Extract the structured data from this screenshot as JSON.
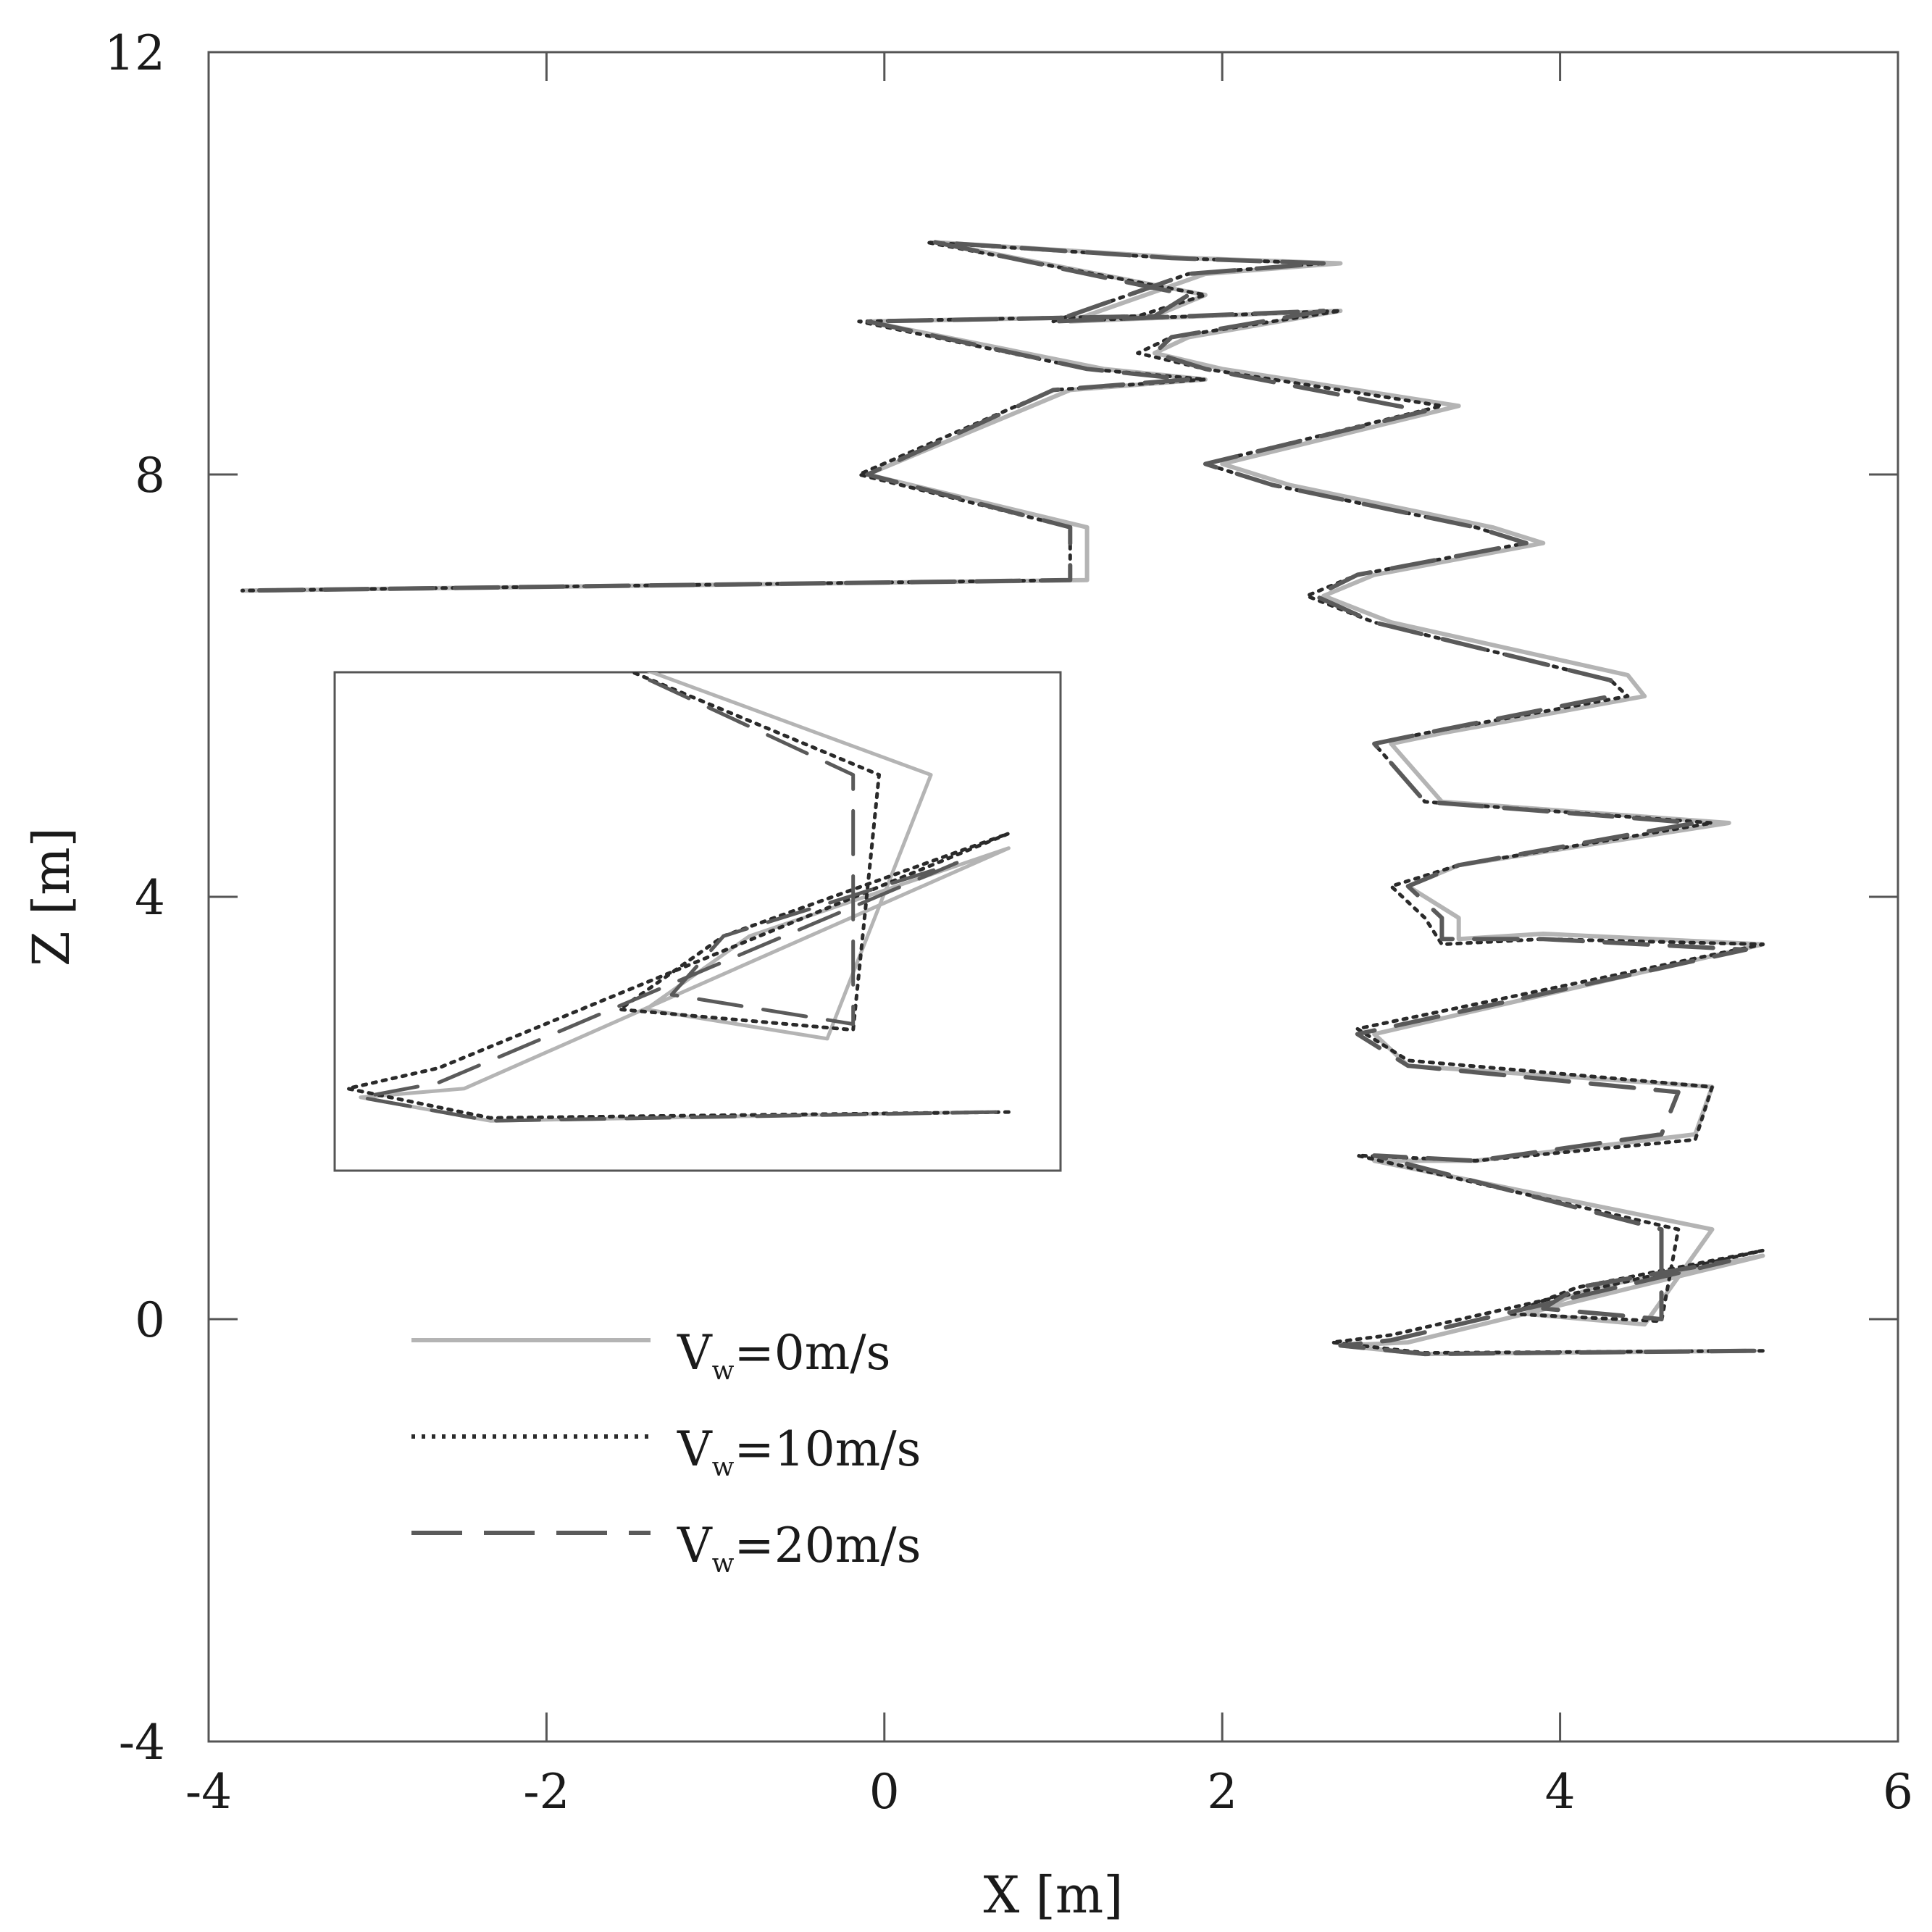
{
  "chart_data": {
    "type": "line",
    "xlabel": "X [m]",
    "ylabel": "Z [m]",
    "xlim": [
      -4,
      6
    ],
    "ylim": [
      -4,
      12
    ],
    "x_ticks": [
      -4,
      -2,
      0,
      2,
      4,
      6
    ],
    "y_ticks": [
      -4,
      0,
      4,
      8,
      12
    ],
    "x_tick_labels": [
      "-4",
      "-2",
      "0",
      "2",
      "4",
      "6"
    ],
    "y_tick_labels": [
      "-4",
      "0",
      "4",
      "8",
      "12"
    ],
    "grid": false,
    "legend_position": "lower-left",
    "has_inset": true,
    "series": [
      {
        "name": "Vw=0m/s",
        "legend_main": "V",
        "legend_sub": "w",
        "legend_rest": "=0m/s",
        "color": "#b4b4b4",
        "style": "solid",
        "x": [
          5.1,
          3.2,
          2.7,
          3.1,
          5.2,
          4.2,
          3.8,
          4.5,
          4.9,
          2.9,
          3.5,
          4.8,
          4.9,
          3.1,
          2.9,
          5.2,
          3.9,
          3.4,
          3.4,
          3.1,
          3.4,
          5.0,
          3.3,
          3.0,
          3.3,
          4.5,
          4.4,
          3.0,
          2.6,
          2.9,
          3.9,
          3.6,
          2.4,
          2.0,
          3.4,
          2.0,
          1.6,
          1.8,
          2.7,
          1.1,
          1.9,
          2.7,
          1.8,
          0.3,
          1.9,
          1.6,
          -0.1,
          1.3,
          1.9,
          1.1,
          -0.1,
          1.2,
          1.2,
          -3.8
        ],
        "y": [
          -0.3,
          -0.33,
          -0.25,
          -0.22,
          0.6,
          0.3,
          0.05,
          -0.05,
          0.85,
          1.5,
          1.5,
          1.75,
          2.2,
          2.4,
          2.7,
          3.55,
          3.65,
          3.6,
          3.8,
          4.1,
          4.3,
          4.7,
          4.9,
          5.45,
          5.55,
          5.9,
          6.1,
          6.6,
          6.85,
          7.05,
          7.35,
          7.5,
          7.9,
          8.1,
          8.65,
          9.0,
          9.15,
          9.3,
          9.55,
          9.45,
          9.9,
          10.0,
          10.05,
          10.2,
          9.7,
          9.5,
          9.45,
          9.0,
          8.9,
          8.8,
          8.0,
          7.5,
          7.0,
          6.9
        ]
      },
      {
        "name": "Vw=10m/s",
        "legend_main": "V",
        "legend_sub": "w",
        "legend_rest": "=10m/s",
        "color": "#2a2a2a",
        "style": "dotted",
        "x": [
          5.2,
          3.2,
          2.65,
          3.0,
          5.2,
          4.1,
          3.7,
          4.6,
          4.7,
          2.8,
          3.5,
          4.8,
          4.9,
          3.1,
          2.8,
          5.2,
          3.9,
          3.3,
          3.2,
          3.0,
          3.4,
          4.9,
          3.2,
          2.9,
          3.2,
          4.4,
          4.3,
          2.9,
          2.5,
          2.8,
          3.8,
          3.5,
          2.3,
          1.9,
          3.3,
          1.9,
          1.5,
          1.7,
          2.7,
          1.0,
          1.8,
          2.6,
          1.7,
          0.25,
          1.9,
          1.5,
          -0.15,
          1.2,
          1.9,
          1.0,
          -0.15,
          1.1,
          1.1,
          -3.8
        ],
        "y": [
          -0.3,
          -0.32,
          -0.22,
          -0.15,
          0.65,
          0.3,
          0.05,
          -0.02,
          0.85,
          1.55,
          1.5,
          1.7,
          2.2,
          2.45,
          2.75,
          3.55,
          3.6,
          3.55,
          3.8,
          4.1,
          4.3,
          4.7,
          4.9,
          5.45,
          5.55,
          5.9,
          6.05,
          6.6,
          6.85,
          7.05,
          7.35,
          7.5,
          7.9,
          8.1,
          8.65,
          9.0,
          9.15,
          9.3,
          9.55,
          9.45,
          9.9,
          10.0,
          10.05,
          10.2,
          9.7,
          9.5,
          9.45,
          9.0,
          8.9,
          8.8,
          8.0,
          7.5,
          7.0,
          6.9
        ]
      },
      {
        "name": "Vw=20m/s",
        "legend_main": "V",
        "legend_sub": "w",
        "legend_rest": "=20m/s",
        "color": "#5a5a5a",
        "style": "dashed",
        "x": [
          5.15,
          3.2,
          2.7,
          3.0,
          5.0,
          4.1,
          3.9,
          4.6,
          4.6,
          2.9,
          3.5,
          4.6,
          4.7,
          3.1,
          2.8,
          5.1,
          3.9,
          3.3,
          3.3,
          3.1,
          3.4,
          4.8,
          3.2,
          2.9,
          3.2,
          4.3,
          4.3,
          2.9,
          2.55,
          2.8,
          3.8,
          3.5,
          2.3,
          1.9,
          3.2,
          1.9,
          1.6,
          1.7,
          2.6,
          1.0,
          1.8,
          2.6,
          1.7,
          0.3,
          1.8,
          1.6,
          -0.1,
          1.2,
          1.8,
          1.0,
          -0.1,
          1.1,
          1.1,
          -3.8
        ],
        "y": [
          -0.3,
          -0.33,
          -0.25,
          -0.2,
          0.55,
          0.3,
          0.1,
          0.0,
          0.85,
          1.55,
          1.5,
          1.75,
          2.15,
          2.4,
          2.7,
          3.5,
          3.6,
          3.6,
          3.8,
          4.1,
          4.3,
          4.7,
          4.9,
          5.45,
          5.55,
          5.9,
          6.05,
          6.6,
          6.85,
          7.05,
          7.35,
          7.5,
          7.9,
          8.1,
          8.6,
          9.0,
          9.15,
          9.3,
          9.55,
          9.45,
          9.9,
          10.0,
          10.05,
          10.2,
          9.7,
          9.5,
          9.45,
          9.0,
          8.9,
          8.8,
          8.0,
          7.5,
          7.0,
          6.9
        ]
      }
    ]
  }
}
